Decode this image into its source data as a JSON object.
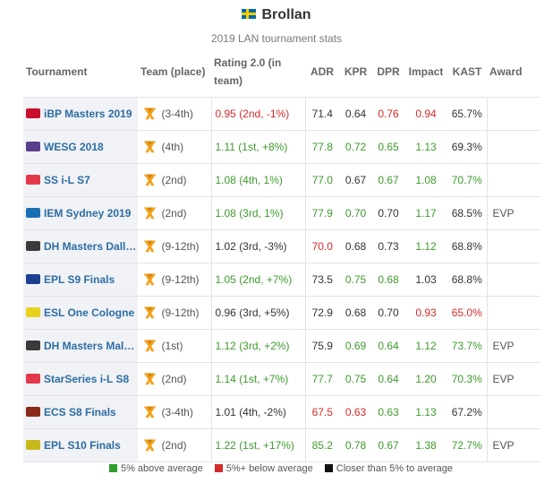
{
  "player": {
    "name": "Brollan",
    "flag_icon": "sweden-flag-icon"
  },
  "subtitle": "2019 LAN tournament stats",
  "columns": {
    "tournament": "Tournament",
    "team": "Team (place)",
    "rating": "Rating 2.0 (in team)",
    "adr": "ADR",
    "kpr": "KPR",
    "dpr": "DPR",
    "impact": "Impact",
    "kast": "KAST",
    "award": "Award"
  },
  "colors": {
    "green": "#3e9a2d",
    "red": "#d62b2b",
    "black": "#333333"
  },
  "team_icon": "fnatic-logo-icon",
  "rows": [
    {
      "event": "iBP Masters 2019",
      "event_icon": "ibp-logo-icon",
      "event_color": "#c8102e",
      "place": "(3-4th)",
      "rating": "0.95 (2nd, -1%)",
      "rating_c": "r",
      "adr": "71.4",
      "adr_c": "b",
      "kpr": "0.64",
      "kpr_c": "b",
      "dpr": "0.76",
      "dpr_c": "r",
      "impact": "0.94",
      "impact_c": "r",
      "kast": "65.7%",
      "kast_c": "b",
      "award": ""
    },
    {
      "event": "WESG 2018",
      "event_icon": "wesg-logo-icon",
      "event_color": "#5a3e8c",
      "place": "(4th)",
      "rating": "1.11 (1st, +8%)",
      "rating_c": "g",
      "adr": "77.8",
      "adr_c": "g",
      "kpr": "0.72",
      "kpr_c": "g",
      "dpr": "0.65",
      "dpr_c": "g",
      "impact": "1.13",
      "impact_c": "g",
      "kast": "69.3%",
      "kast_c": "b",
      "award": ""
    },
    {
      "event": "SS i-L S7",
      "event_icon": "starseries-logo-icon",
      "event_color": "#e4394b",
      "place": "(2nd)",
      "rating": "1.08 (4th, 1%)",
      "rating_c": "g",
      "adr": "77.0",
      "adr_c": "g",
      "kpr": "0.67",
      "kpr_c": "b",
      "dpr": "0.67",
      "dpr_c": "g",
      "impact": "1.08",
      "impact_c": "g",
      "kast": "70.7%",
      "kast_c": "g",
      "award": ""
    },
    {
      "event": "IEM Sydney 2019",
      "event_icon": "iem-logo-icon",
      "event_color": "#1a6fb3",
      "place": "(2nd)",
      "rating": "1.08 (3rd, 1%)",
      "rating_c": "g",
      "adr": "77.9",
      "adr_c": "g",
      "kpr": "0.70",
      "kpr_c": "g",
      "dpr": "0.70",
      "dpr_c": "b",
      "impact": "1.17",
      "impact_c": "g",
      "kast": "68.5%",
      "kast_c": "b",
      "award": "EVP"
    },
    {
      "event": "DH Masters Dall…",
      "event_icon": "dreamhack-logo-icon",
      "event_color": "#3a3a3a",
      "place": "(9-12th)",
      "rating": "1.02 (3rd, -3%)",
      "rating_c": "b",
      "adr": "70.0",
      "adr_c": "r",
      "kpr": "0.68",
      "kpr_c": "b",
      "dpr": "0.73",
      "dpr_c": "b",
      "impact": "1.12",
      "impact_c": "g",
      "kast": "68.8%",
      "kast_c": "b",
      "award": ""
    },
    {
      "event": "EPL S9 Finals",
      "event_icon": "epl-logo-icon",
      "event_color": "#1d3f8f",
      "place": "(9-12th)",
      "rating": "1.05 (2nd, +7%)",
      "rating_c": "g",
      "adr": "73.5",
      "adr_c": "b",
      "kpr": "0.75",
      "kpr_c": "g",
      "dpr": "0.68",
      "dpr_c": "g",
      "impact": "1.03",
      "impact_c": "b",
      "kast": "68.8%",
      "kast_c": "b",
      "award": ""
    },
    {
      "event": "ESL One Cologne",
      "event_icon": "esl-logo-icon",
      "event_color": "#e8d21d",
      "place": "(9-12th)",
      "rating": "0.96 (3rd, +5%)",
      "rating_c": "b",
      "adr": "72.9",
      "adr_c": "b",
      "kpr": "0.68",
      "kpr_c": "b",
      "dpr": "0.70",
      "dpr_c": "b",
      "impact": "0.93",
      "impact_c": "r",
      "kast": "65.0%",
      "kast_c": "r",
      "award": ""
    },
    {
      "event": "DH Masters Mal…",
      "event_icon": "dreamhack-logo-icon",
      "event_color": "#3a3a3a",
      "place": "(1st)",
      "rating": "1.12 (3rd, +2%)",
      "rating_c": "g",
      "adr": "75.9",
      "adr_c": "b",
      "kpr": "0.69",
      "kpr_c": "g",
      "dpr": "0.64",
      "dpr_c": "g",
      "impact": "1.12",
      "impact_c": "g",
      "kast": "73.7%",
      "kast_c": "g",
      "award": "EVP"
    },
    {
      "event": "StarSeries i-L S8",
      "event_icon": "starseries-logo-icon",
      "event_color": "#e4394b",
      "place": "(2nd)",
      "rating": "1.14 (1st, +7%)",
      "rating_c": "g",
      "adr": "77.7",
      "adr_c": "g",
      "kpr": "0.75",
      "kpr_c": "g",
      "dpr": "0.64",
      "dpr_c": "g",
      "impact": "1.20",
      "impact_c": "g",
      "kast": "70.3%",
      "kast_c": "g",
      "award": "EVP"
    },
    {
      "event": "ECS S8 Finals",
      "event_icon": "ecs-logo-icon",
      "event_color": "#8b2a1a",
      "place": "(3-4th)",
      "rating": "1.01 (4th, -2%)",
      "rating_c": "b",
      "adr": "67.5",
      "adr_c": "r",
      "kpr": "0.63",
      "kpr_c": "r",
      "dpr": "0.63",
      "dpr_c": "g",
      "impact": "1.13",
      "impact_c": "g",
      "kast": "67.2%",
      "kast_c": "b",
      "award": ""
    },
    {
      "event": "EPL S10 Finals",
      "event_icon": "epl-logo-icon",
      "event_color": "#c9b81a",
      "place": "(2nd)",
      "rating": "1.22 (1st, +17%)",
      "rating_c": "g",
      "adr": "85.2",
      "adr_c": "g",
      "kpr": "0.78",
      "kpr_c": "g",
      "dpr": "0.67",
      "dpr_c": "g",
      "impact": "1.38",
      "impact_c": "g",
      "kast": "72.7%",
      "kast_c": "g",
      "award": "EVP"
    }
  ],
  "legend": {
    "above": "5% above average",
    "below": "5%+ below average",
    "closer": "Closer than 5% to average"
  }
}
